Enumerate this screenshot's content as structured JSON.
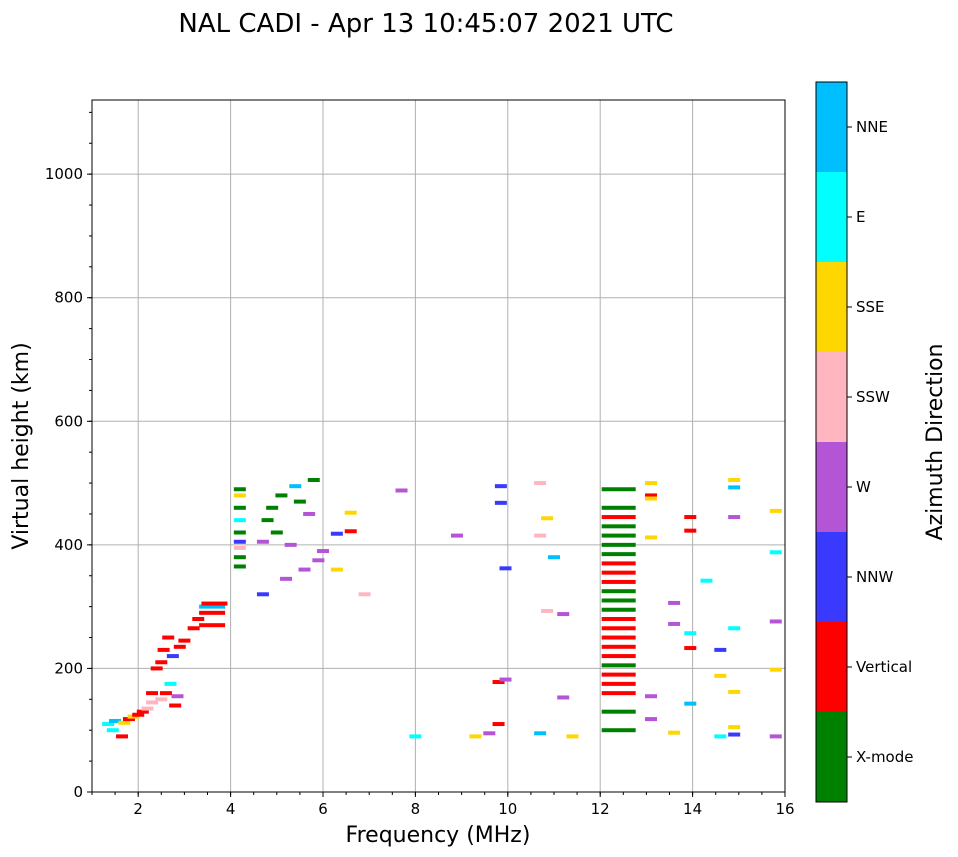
{
  "chart_data": {
    "type": "scatter",
    "title": "NAL CADI - Apr 13 10:45:07 2021 UTC",
    "xlabel": "Frequency (MHz)",
    "ylabel": "Virtual height (km)",
    "xlim": [
      1,
      16
    ],
    "ylim": [
      0,
      1120
    ],
    "xticks": [
      2,
      4,
      6,
      8,
      10,
      12,
      14,
      16
    ],
    "yticks": [
      0,
      200,
      400,
      600,
      800,
      1000
    ],
    "grid": true,
    "colorbar": {
      "label": "Azimuth Direction",
      "categories": [
        {
          "name": "X-mode",
          "color": "#008000"
        },
        {
          "name": "Vertical",
          "color": "#ff0000"
        },
        {
          "name": "NNW",
          "color": "#3a3aff"
        },
        {
          "name": "W",
          "color": "#b455d6"
        },
        {
          "name": "SSW",
          "color": "#ffb6c1"
        },
        {
          "name": "SSE",
          "color": "#ffd700"
        },
        {
          "name": "E",
          "color": "#00ffff"
        },
        {
          "name": "NNE",
          "color": "#00bfff"
        }
      ]
    },
    "points": [
      {
        "f": 1.35,
        "h": 110,
        "dir": "E"
      },
      {
        "f": 1.45,
        "h": 100,
        "dir": "E"
      },
      {
        "f": 1.5,
        "h": 115,
        "dir": "NNE"
      },
      {
        "f": 1.65,
        "h": 90,
        "dir": "Vertical"
      },
      {
        "f": 1.7,
        "h": 112,
        "dir": "SSE"
      },
      {
        "f": 1.8,
        "h": 118,
        "dir": "Vertical"
      },
      {
        "f": 1.9,
        "h": 122,
        "dir": "SSE"
      },
      {
        "f": 2.0,
        "h": 125,
        "dir": "Vertical"
      },
      {
        "f": 2.1,
        "h": 130,
        "dir": "Vertical"
      },
      {
        "f": 2.2,
        "h": 135,
        "dir": "SSW"
      },
      {
        "f": 2.3,
        "h": 145,
        "dir": "SSW"
      },
      {
        "f": 2.3,
        "h": 160,
        "dir": "Vertical"
      },
      {
        "f": 2.4,
        "h": 200,
        "dir": "Vertical"
      },
      {
        "f": 2.5,
        "h": 210,
        "dir": "Vertical"
      },
      {
        "f": 2.5,
        "h": 150,
        "dir": "SSW"
      },
      {
        "f": 2.55,
        "h": 230,
        "dir": "Vertical"
      },
      {
        "f": 2.6,
        "h": 160,
        "dir": "Vertical"
      },
      {
        "f": 2.65,
        "h": 250,
        "dir": "Vertical"
      },
      {
        "f": 2.7,
        "h": 175,
        "dir": "E"
      },
      {
        "f": 2.75,
        "h": 220,
        "dir": "NNW"
      },
      {
        "f": 2.8,
        "h": 140,
        "dir": "Vertical"
      },
      {
        "f": 2.85,
        "h": 155,
        "dir": "W"
      },
      {
        "f": 2.9,
        "h": 235,
        "dir": "Vertical"
      },
      {
        "f": 3.0,
        "h": 245,
        "dir": "Vertical"
      },
      {
        "f": 3.2,
        "h": 265,
        "dir": "Vertical"
      },
      {
        "f": 3.3,
        "h": 280,
        "dir": "Vertical"
      },
      {
        "f": 3.6,
        "h": 290,
        "dir": "Vertical"
      },
      {
        "f": 3.6,
        "h": 300,
        "dir": "NNE"
      },
      {
        "f": 3.65,
        "h": 305,
        "dir": "Vertical"
      },
      {
        "f": 3.6,
        "h": 270,
        "dir": "Vertical"
      },
      {
        "f": 4.2,
        "h": 365,
        "dir": "X-mode"
      },
      {
        "f": 4.2,
        "h": 380,
        "dir": "X-mode"
      },
      {
        "f": 4.2,
        "h": 395,
        "dir": "SSW"
      },
      {
        "f": 4.2,
        "h": 405,
        "dir": "NNW"
      },
      {
        "f": 4.2,
        "h": 420,
        "dir": "X-mode"
      },
      {
        "f": 4.2,
        "h": 440,
        "dir": "E"
      },
      {
        "f": 4.2,
        "h": 460,
        "dir": "X-mode"
      },
      {
        "f": 4.2,
        "h": 480,
        "dir": "SSE"
      },
      {
        "f": 4.2,
        "h": 490,
        "dir": "X-mode"
      },
      {
        "f": 4.7,
        "h": 320,
        "dir": "NNW"
      },
      {
        "f": 4.7,
        "h": 405,
        "dir": "W"
      },
      {
        "f": 4.8,
        "h": 440,
        "dir": "X-mode"
      },
      {
        "f": 4.9,
        "h": 460,
        "dir": "X-mode"
      },
      {
        "f": 5.0,
        "h": 420,
        "dir": "X-mode"
      },
      {
        "f": 5.1,
        "h": 480,
        "dir": "X-mode"
      },
      {
        "f": 5.2,
        "h": 345,
        "dir": "W"
      },
      {
        "f": 5.3,
        "h": 400,
        "dir": "W"
      },
      {
        "f": 5.4,
        "h": 495,
        "dir": "NNE"
      },
      {
        "f": 5.5,
        "h": 470,
        "dir": "X-mode"
      },
      {
        "f": 5.6,
        "h": 360,
        "dir": "W"
      },
      {
        "f": 5.7,
        "h": 450,
        "dir": "W"
      },
      {
        "f": 5.8,
        "h": 505,
        "dir": "X-mode"
      },
      {
        "f": 5.9,
        "h": 375,
        "dir": "W"
      },
      {
        "f": 6.0,
        "h": 390,
        "dir": "W"
      },
      {
        "f": 6.3,
        "h": 360,
        "dir": "SSE"
      },
      {
        "f": 6.3,
        "h": 418,
        "dir": "NNW"
      },
      {
        "f": 6.6,
        "h": 422,
        "dir": "Vertical"
      },
      {
        "f": 6.6,
        "h": 452,
        "dir": "SSE"
      },
      {
        "f": 6.9,
        "h": 320,
        "dir": "SSW"
      },
      {
        "f": 7.7,
        "h": 488,
        "dir": "W"
      },
      {
        "f": 8.0,
        "h": 90,
        "dir": "E"
      },
      {
        "f": 8.9,
        "h": 415,
        "dir": "W"
      },
      {
        "f": 9.3,
        "h": 90,
        "dir": "SSE"
      },
      {
        "f": 9.6,
        "h": 95,
        "dir": "W"
      },
      {
        "f": 9.8,
        "h": 110,
        "dir": "Vertical"
      },
      {
        "f": 9.8,
        "h": 178,
        "dir": "Vertical"
      },
      {
        "f": 9.85,
        "h": 495,
        "dir": "NNW"
      },
      {
        "f": 9.85,
        "h": 468,
        "dir": "NNW"
      },
      {
        "f": 9.95,
        "h": 362,
        "dir": "NNW"
      },
      {
        "f": 9.95,
        "h": 182,
        "dir": "W"
      },
      {
        "f": 10.7,
        "h": 500,
        "dir": "SSW"
      },
      {
        "f": 10.7,
        "h": 415,
        "dir": "SSW"
      },
      {
        "f": 10.7,
        "h": 95,
        "dir": "NNE"
      },
      {
        "f": 10.85,
        "h": 443,
        "dir": "SSE"
      },
      {
        "f": 10.85,
        "h": 293,
        "dir": "SSW"
      },
      {
        "f": 11.0,
        "h": 380,
        "dir": "NNE"
      },
      {
        "f": 11.2,
        "h": 288,
        "dir": "W"
      },
      {
        "f": 11.2,
        "h": 153,
        "dir": "W"
      },
      {
        "f": 11.4,
        "h": 90,
        "dir": "SSE"
      },
      {
        "f": 12.4,
        "h": 100,
        "dir": "X-mode"
      },
      {
        "f": 12.4,
        "h": 130,
        "dir": "X-mode"
      },
      {
        "f": 12.4,
        "h": 160,
        "dir": "Vertical"
      },
      {
        "f": 12.4,
        "h": 175,
        "dir": "Vertical"
      },
      {
        "f": 12.4,
        "h": 190,
        "dir": "Vertical"
      },
      {
        "f": 12.4,
        "h": 205,
        "dir": "X-mode"
      },
      {
        "f": 12.4,
        "h": 220,
        "dir": "Vertical"
      },
      {
        "f": 12.4,
        "h": 235,
        "dir": "Vertical"
      },
      {
        "f": 12.4,
        "h": 250,
        "dir": "Vertical"
      },
      {
        "f": 12.4,
        "h": 265,
        "dir": "Vertical"
      },
      {
        "f": 12.4,
        "h": 280,
        "dir": "Vertical"
      },
      {
        "f": 12.4,
        "h": 295,
        "dir": "X-mode"
      },
      {
        "f": 12.4,
        "h": 310,
        "dir": "X-mode"
      },
      {
        "f": 12.4,
        "h": 325,
        "dir": "X-mode"
      },
      {
        "f": 12.4,
        "h": 340,
        "dir": "Vertical"
      },
      {
        "f": 12.4,
        "h": 355,
        "dir": "Vertical"
      },
      {
        "f": 12.4,
        "h": 370,
        "dir": "Vertical"
      },
      {
        "f": 12.4,
        "h": 385,
        "dir": "X-mode"
      },
      {
        "f": 12.4,
        "h": 400,
        "dir": "X-mode"
      },
      {
        "f": 12.4,
        "h": 415,
        "dir": "X-mode"
      },
      {
        "f": 12.4,
        "h": 430,
        "dir": "X-mode"
      },
      {
        "f": 12.4,
        "h": 445,
        "dir": "Vertical"
      },
      {
        "f": 12.4,
        "h": 460,
        "dir": "X-mode"
      },
      {
        "f": 12.4,
        "h": 490,
        "dir": "X-mode"
      },
      {
        "f": 13.1,
        "h": 500,
        "dir": "SSE"
      },
      {
        "f": 13.1,
        "h": 480,
        "dir": "Vertical"
      },
      {
        "f": 13.1,
        "h": 475,
        "dir": "SSE"
      },
      {
        "f": 13.1,
        "h": 412,
        "dir": "SSE"
      },
      {
        "f": 13.1,
        "h": 155,
        "dir": "W"
      },
      {
        "f": 13.1,
        "h": 118,
        "dir": "W"
      },
      {
        "f": 13.6,
        "h": 306,
        "dir": "W"
      },
      {
        "f": 13.6,
        "h": 272,
        "dir": "W"
      },
      {
        "f": 13.6,
        "h": 96,
        "dir": "SSE"
      },
      {
        "f": 13.95,
        "h": 445,
        "dir": "Vertical"
      },
      {
        "f": 13.95,
        "h": 423,
        "dir": "Vertical"
      },
      {
        "f": 13.95,
        "h": 257,
        "dir": "E"
      },
      {
        "f": 13.95,
        "h": 233,
        "dir": "Vertical"
      },
      {
        "f": 13.95,
        "h": 143,
        "dir": "NNE"
      },
      {
        "f": 14.3,
        "h": 342,
        "dir": "E"
      },
      {
        "f": 14.6,
        "h": 230,
        "dir": "NNW"
      },
      {
        "f": 14.6,
        "h": 188,
        "dir": "SSE"
      },
      {
        "f": 14.6,
        "h": 90,
        "dir": "E"
      },
      {
        "f": 14.9,
        "h": 505,
        "dir": "SSE"
      },
      {
        "f": 14.9,
        "h": 493,
        "dir": "NNE"
      },
      {
        "f": 14.9,
        "h": 445,
        "dir": "W"
      },
      {
        "f": 14.9,
        "h": 265,
        "dir": "E"
      },
      {
        "f": 14.9,
        "h": 162,
        "dir": "SSE"
      },
      {
        "f": 14.9,
        "h": 105,
        "dir": "SSE"
      },
      {
        "f": 14.9,
        "h": 93,
        "dir": "NNW"
      },
      {
        "f": 15.8,
        "h": 455,
        "dir": "SSE"
      },
      {
        "f": 15.8,
        "h": 388,
        "dir": "E"
      },
      {
        "f": 15.8,
        "h": 276,
        "dir": "W"
      },
      {
        "f": 15.8,
        "h": 198,
        "dir": "SSE"
      },
      {
        "f": 15.8,
        "h": 90,
        "dir": "W"
      }
    ]
  }
}
